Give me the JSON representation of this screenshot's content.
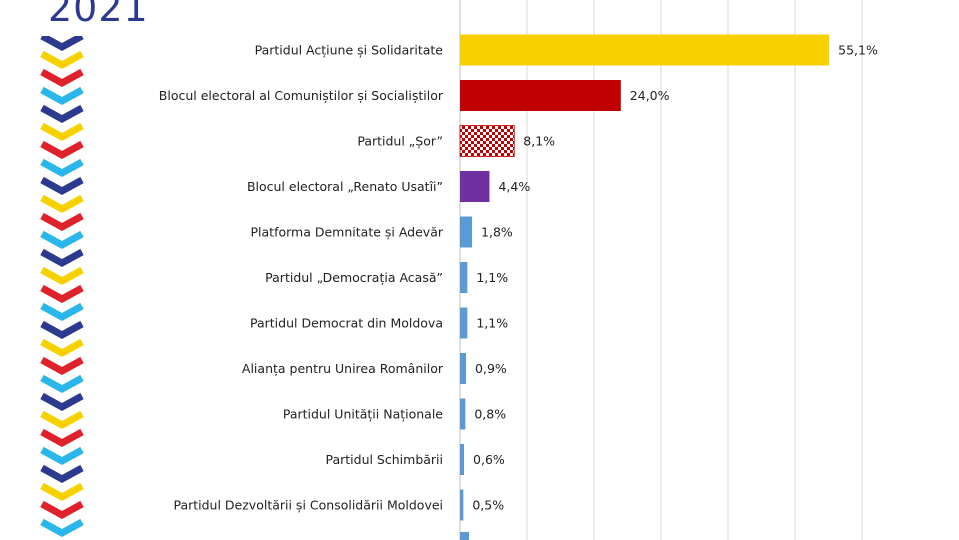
{
  "header": {
    "year": "2021"
  },
  "colors": {
    "yellow": "#f8d000",
    "red": "#c00000",
    "purple": "#7030a0",
    "lightblue": "#5b9bd5",
    "blue_navy": "#2b3a8f",
    "grid": "#d9d9d9",
    "deco_blue": "#2b3a8f",
    "deco_yellow": "#f8d000",
    "deco_red": "#e0202a",
    "deco_cyan": "#29b6e8"
  },
  "chart_data": {
    "type": "bar",
    "orientation": "horizontal",
    "categories": [
      "Partidul Acțiune și Solidaritate",
      "Blocul electoral al Comuniștilor și Socialiștilor",
      "Partidul „Șor”",
      "Blocul electoral „Renato Usatîi”",
      "Platforma Demnitate și Adevăr",
      "Partidul „Democrația Acasă”",
      "Partidul Democrat din Moldova",
      "Alianța pentru Unirea Românilor",
      "Partidul Unității Naționale",
      "Partidul Schimbării",
      "Partidul Dezvoltării și Consolidării Moldovei"
    ],
    "values": [
      55.1,
      24.0,
      8.1,
      4.4,
      1.8,
      1.1,
      1.1,
      0.9,
      0.8,
      0.6,
      0.5
    ],
    "value_labels": [
      "55,1%",
      "24,0%",
      "8,1%",
      "4,4%",
      "1,8%",
      "1,1%",
      "1,1%",
      "0,9%",
      "0,8%",
      "0,6%",
      "0,5%"
    ],
    "bar_colors": [
      "#f8d000",
      "#c00000",
      "checker",
      "#7030a0",
      "#5b9bd5",
      "#5b9bd5",
      "#5b9bd5",
      "#5b9bd5",
      "#5b9bd5",
      "#5b9bd5",
      "#5b9bd5"
    ],
    "xlim": [
      0,
      60
    ],
    "grid": true,
    "title": "",
    "xlabel": "",
    "ylabel": ""
  }
}
